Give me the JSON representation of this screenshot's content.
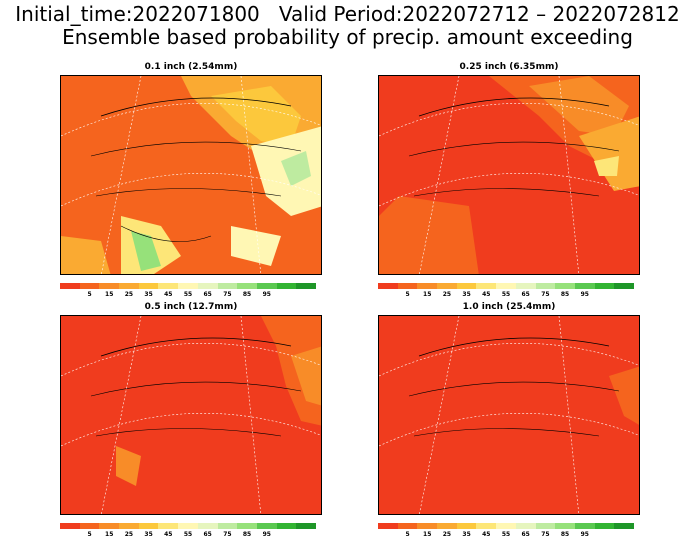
{
  "header": {
    "line1": "Initial_time:2022071800   Valid Period:2022072712 – 2022072812",
    "line2": "Ensemble based probability of precip. amount exceeding"
  },
  "panels": [
    {
      "title": "0.1 inch (2.54mm)",
      "scheme": "mixed"
    },
    {
      "title": "0.25 inch (6.35mm)",
      "scheme": "mostly-orange"
    },
    {
      "title": "0.5 inch (12.7mm)",
      "scheme": "mostly-red"
    },
    {
      "title": "1.0 inch (25.4mm)",
      "scheme": "red"
    }
  ],
  "colorbar": {
    "colors": [
      "#f03c1e",
      "#f5641e",
      "#f88c28",
      "#faaa32",
      "#fcc83c",
      "#fde678",
      "#fff7b4",
      "#e6f5be",
      "#beeba0",
      "#96e17a",
      "#5ac850",
      "#32b432",
      "#1e9628"
    ],
    "labels": [
      "5",
      "15",
      "25",
      "35",
      "45",
      "55",
      "65",
      "75",
      "85",
      "95"
    ]
  }
}
